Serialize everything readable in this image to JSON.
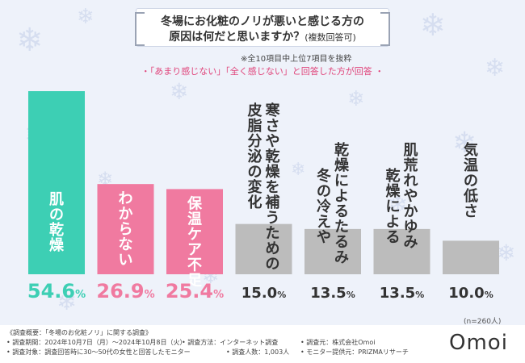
{
  "title": {
    "line1": "冬場にお化粧のノリが悪いと感じる方の",
    "line2": "原因は何だと思いますか？",
    "line2_suffix": "(複数回答可)"
  },
  "note": "※全10項目中上位7項目を抜粋",
  "subtitle": "・「あまり感じない」「全く感じない」と回答した方が回答 ・",
  "chart_data": {
    "type": "bar",
    "categories": [
      "肌の乾燥",
      "わからない",
      "保温ケア不足",
      "寒さや乾燥を補うための皮脂分泌の変化",
      "乾燥によるたるみ 冬の冷えや",
      "肌荒れやかゆみ 乾燥による",
      "気温の低さ"
    ],
    "values": [
      54.6,
      26.9,
      25.4,
      15.0,
      13.5,
      13.5,
      10.0
    ],
    "value_labels": [
      {
        "num": "54.6",
        "unit": "%"
      },
      {
        "num": "26.9",
        "unit": "%"
      },
      {
        "num": "25.4",
        "unit": "%"
      },
      {
        "num": "15.0",
        "unit": "%"
      },
      {
        "num": "13.5",
        "unit": "%"
      },
      {
        "num": "13.5",
        "unit": "%"
      },
      {
        "num": "10.0",
        "unit": "%"
      }
    ],
    "bar_labels": [
      [
        "肌の乾燥"
      ],
      [
        "わからない"
      ],
      [
        "保温ケア不足"
      ],
      [
        "寒さや乾燥を補うための",
        "皮脂分泌の変化"
      ],
      [
        "乾燥によるたるみ",
        "冬の冷えや"
      ],
      [
        "肌荒れやかゆみ",
        "乾燥による"
      ],
      [
        "気温の低さ"
      ]
    ],
    "colors": [
      "#3dcfb4",
      "#f07aa0",
      "#f07aa0",
      "#bcbcbc",
      "#bcbcbc",
      "#bcbcbc",
      "#bcbcbc"
    ],
    "label_colors": [
      "#ffffff",
      "#ffffff",
      "#ffffff",
      "#333333",
      "#333333",
      "#333333",
      "#333333"
    ],
    "value_colors": [
      "#3dcfb4",
      "#f07aa0",
      "#f07aa0",
      "#333333",
      "#333333",
      "#333333",
      "#333333"
    ],
    "ylim": [
      0,
      60
    ]
  },
  "n_note": "(n=260人)",
  "footer": {
    "line1": "《調査概要：「冬場のお化粧ノリ」に関する調査》",
    "period": "• 調査期間：2024年10月7日（月）〜2024年10月8日（火）",
    "method": "• 調査方法：インターネット調査",
    "source": "• 調査元：株式会社Omoi",
    "target": "• 調査対象：調査回答時に30〜50代の女性と回答したモニター",
    "count": "• 調査人数：1,003人",
    "monitor": "• モニター提供元：PRIZMAリサーチ"
  },
  "logo": "Omoi"
}
